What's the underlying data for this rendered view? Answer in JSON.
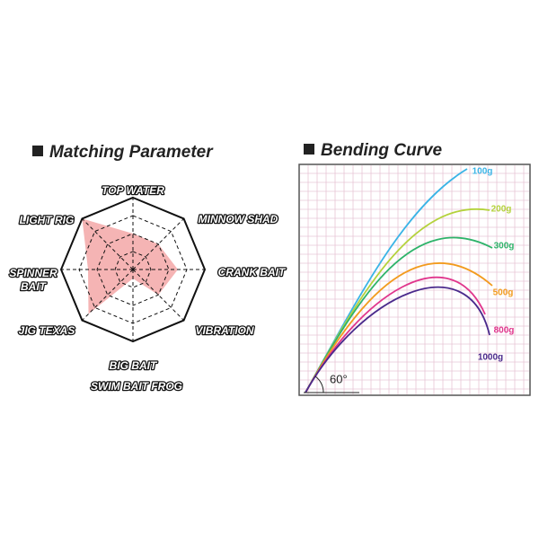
{
  "chart_data": {
    "type": "radar",
    "title": "Matching Parameter",
    "categories": [
      [
        "TOP WATER"
      ],
      [
        "MINNOW SHAD"
      ],
      [
        "CRANK BAIT"
      ],
      [
        "VIBRATION"
      ],
      [
        "BIG BAIT",
        "SWIM BAIT FROG"
      ],
      [
        "JIG TEXAS"
      ],
      [
        "SPINNER",
        "BAIT"
      ],
      [
        "LIGHT RIG"
      ]
    ],
    "values": [
      2,
      2,
      2.5,
      2,
      0.5,
      3.5,
      2.5,
      4
    ],
    "color": "#f19b9b",
    "rlim": [
      0,
      4
    ],
    "rticks": [
      1,
      2,
      3,
      4
    ],
    "grid": true
  },
  "bending_curve": {
    "title": "Bending Curve",
    "angle_label": "60°",
    "curves": [
      {
        "label": "100g",
        "color": "#3ab4e6"
      },
      {
        "label": "200g",
        "color": "#b4d23c"
      },
      {
        "label": "300g",
        "color": "#2eb36a"
      },
      {
        "label": "500g",
        "color": "#f29b1e"
      },
      {
        "label": "800g",
        "color": "#e0358c"
      },
      {
        "label": "1000g",
        "color": "#4a2a8c"
      }
    ]
  }
}
